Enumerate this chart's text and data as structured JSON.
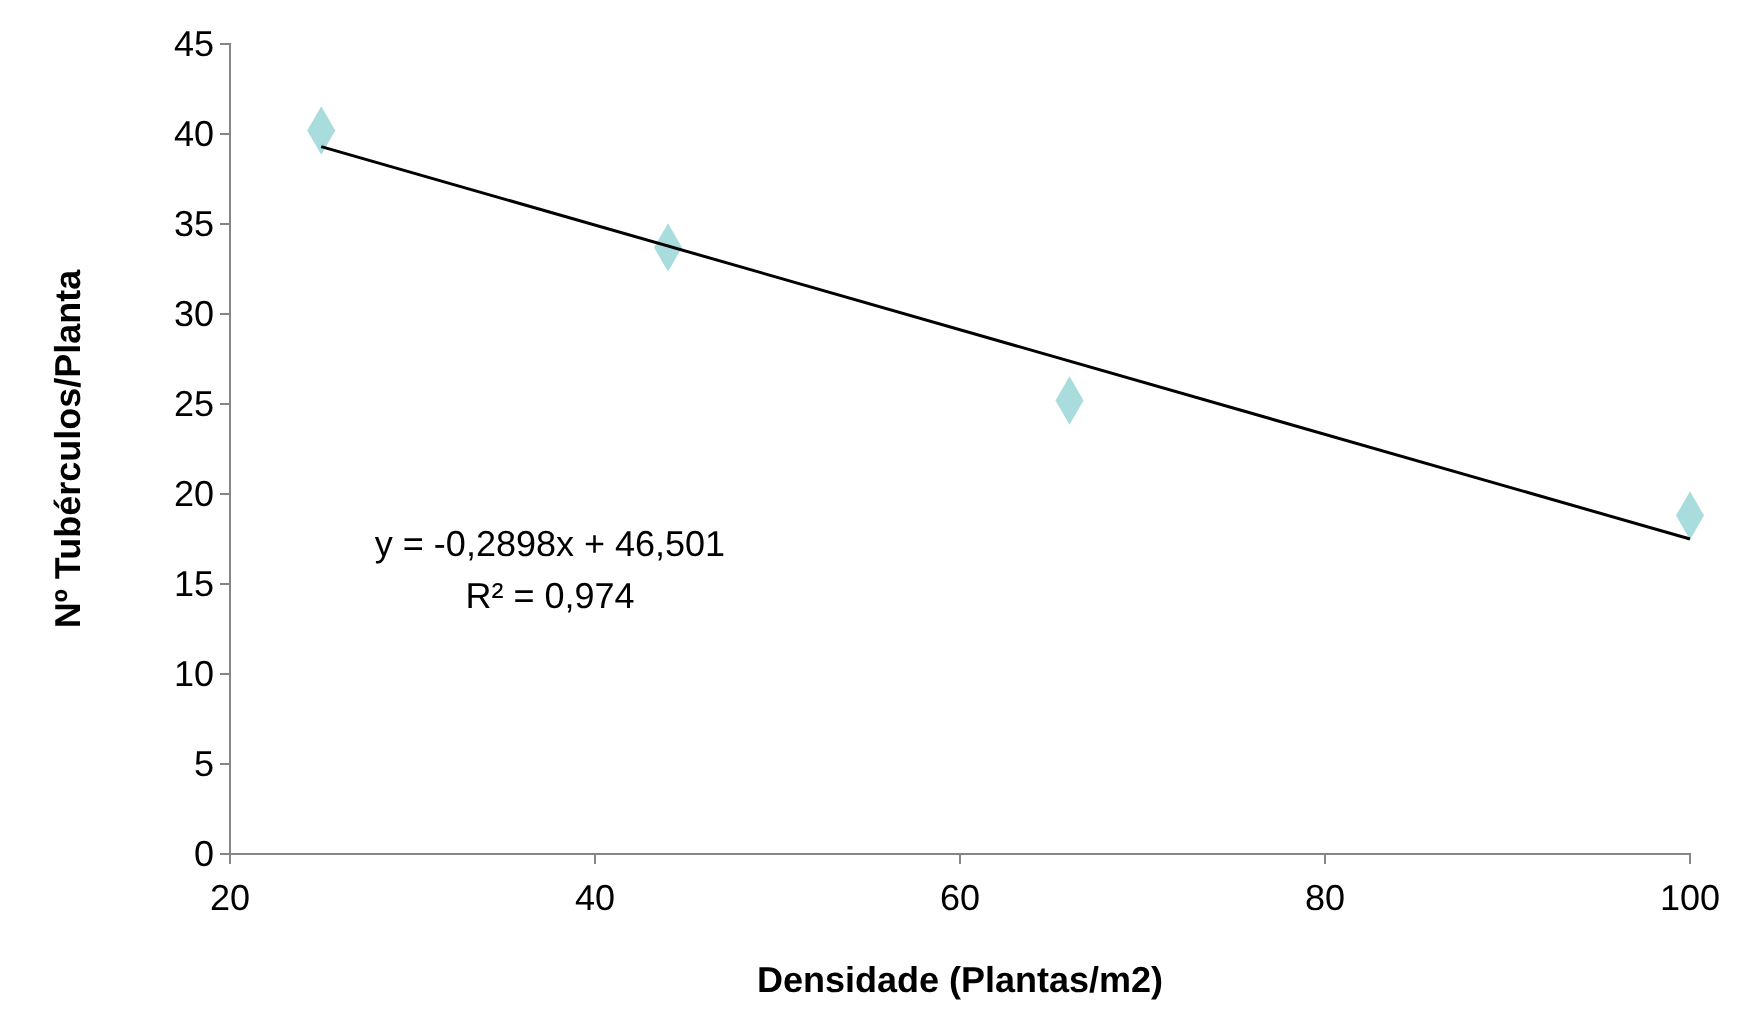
{
  "chart_data": {
    "type": "scatter",
    "xlabel": "Densidade (Plantas/m2)",
    "ylabel": "Nº Tubérculos/Planta",
    "x": [
      25,
      44,
      66,
      100
    ],
    "series": [
      {
        "color": "#a9dcdc",
        "marker": "diamond",
        "values": [
          40.2,
          33.7,
          25.2,
          18.8
        ]
      },
      {
        "type": "line",
        "color": "#000000",
        "x": [
          25,
          100
        ],
        "values": [
          39.3,
          17.5
        ]
      }
    ],
    "annotations": [
      "y = -0,2898x + 46,501",
      "R² = 0,974"
    ],
    "xlim": [
      20,
      100
    ],
    "xticks": [
      20,
      40,
      60,
      80,
      100
    ],
    "ylim": [
      0,
      45
    ],
    "yticks": [
      0,
      5,
      10,
      15,
      20,
      25,
      30,
      35,
      40,
      45
    ],
    "grid": false
  }
}
